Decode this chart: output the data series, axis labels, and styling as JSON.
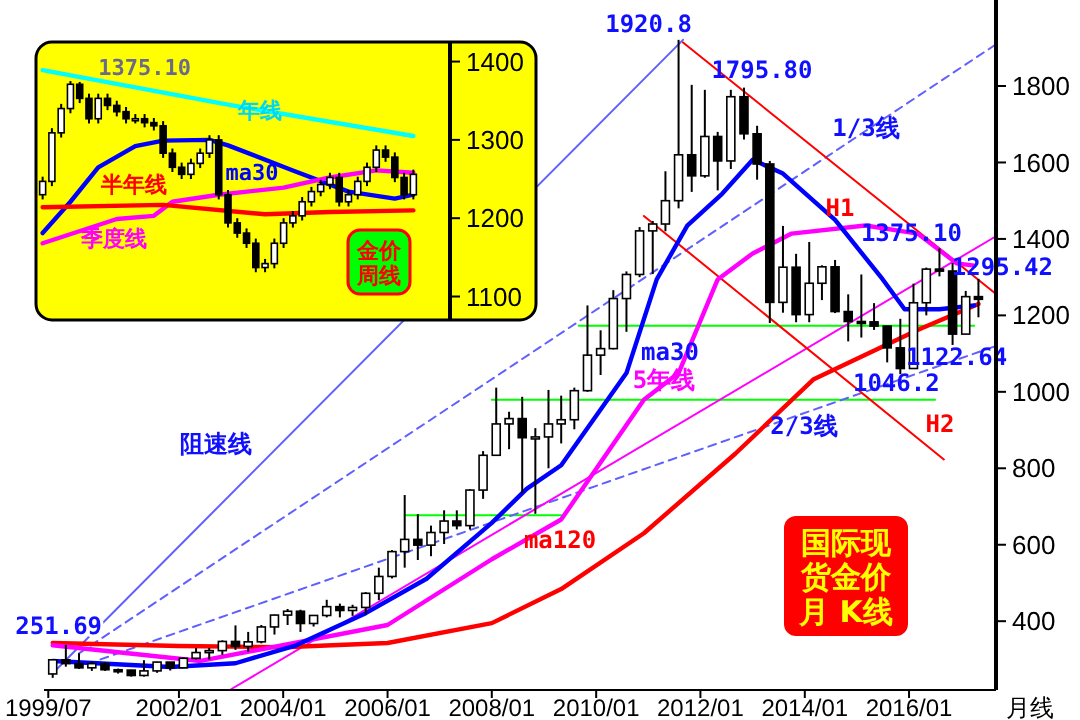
{
  "chart_data": [
    {
      "type": "candlestick",
      "color": "#000000",
      "xlabel": "月线",
      "xlim": [
        "1999-06",
        "2017-09"
      ],
      "ylim": [
        220,
        2025
      ],
      "xticks": [
        {
          "value": "1999-07",
          "label": "1999/07"
        },
        {
          "value": "2002-01",
          "label": "2002/01"
        },
        {
          "value": "2004-01",
          "label": "2004/01"
        },
        {
          "value": "2006-01",
          "label": "2006/01"
        },
        {
          "value": "2008-01",
          "label": "2008/01"
        },
        {
          "value": "2010-01",
          "label": "2010/01"
        },
        {
          "value": "2012-01",
          "label": "2012/01"
        },
        {
          "value": "2014-01",
          "label": "2014/01"
        },
        {
          "value": "2016-01",
          "label": "2016/01"
        }
      ],
      "yticks": [
        400,
        600,
        800,
        1000,
        1200,
        1400,
        1600,
        1800
      ],
      "x": [
        "1999-08",
        "1999-11",
        "2000-02",
        "2000-05",
        "2000-08",
        "2000-11",
        "2001-02",
        "2001-05",
        "2001-08",
        "2001-11",
        "2002-02",
        "2002-05",
        "2002-08",
        "2002-11",
        "2003-02",
        "2003-05",
        "2003-08",
        "2003-11",
        "2004-02",
        "2004-05",
        "2004-08",
        "2004-11",
        "2005-02",
        "2005-05",
        "2005-08",
        "2005-11",
        "2006-02",
        "2006-05",
        "2006-08",
        "2006-11",
        "2007-02",
        "2007-05",
        "2007-08",
        "2007-11",
        "2008-02",
        "2008-05",
        "2008-08",
        "2008-11",
        "2009-02",
        "2009-05",
        "2009-08",
        "2009-11",
        "2010-02",
        "2010-05",
        "2010-08",
        "2010-11",
        "2011-02",
        "2011-05",
        "2011-08",
        "2011-11",
        "2012-02",
        "2012-05",
        "2012-08",
        "2012-11",
        "2013-02",
        "2013-05",
        "2013-08",
        "2013-11",
        "2014-02",
        "2014-05",
        "2014-08",
        "2014-11",
        "2015-02",
        "2015-05",
        "2015-08",
        "2015-11",
        "2016-02",
        "2016-05",
        "2016-08",
        "2016-11",
        "2017-02",
        "2017-05"
      ],
      "ohlc": [
        [
          262,
          300,
          251.69,
          299
        ],
        [
          299,
          338,
          281,
          289
        ],
        [
          289,
          316,
          275,
          278
        ],
        [
          278,
          294,
          270,
          289
        ],
        [
          289,
          292,
          270,
          273
        ],
        [
          273,
          276,
          263,
          272
        ],
        [
          272,
          273,
          255,
          258
        ],
        [
          258,
          298,
          255,
          270
        ],
        [
          270,
          294,
          265,
          293
        ],
        [
          293,
          293,
          271,
          278
        ],
        [
          278,
          305,
          277,
          303
        ],
        [
          303,
          330,
          300,
          318
        ],
        [
          318,
          330,
          300,
          323
        ],
        [
          323,
          350,
          312,
          347
        ],
        [
          347,
          389,
          325,
          334
        ],
        [
          334,
          372,
          320,
          346
        ],
        [
          346,
          390,
          342,
          385
        ],
        [
          385,
          417,
          365,
          416
        ],
        [
          416,
          432,
          390,
          426
        ],
        [
          426,
          430,
          372,
          394
        ],
        [
          394,
          416,
          386,
          415
        ],
        [
          415,
          456,
          410,
          438
        ],
        [
          438,
          446,
          410,
          428
        ],
        [
          428,
          443,
          414,
          436
        ],
        [
          436,
          476,
          418,
          473
        ],
        [
          473,
          540,
          455,
          517
        ],
        [
          517,
          586,
          512,
          582
        ],
        [
          582,
          730,
          540,
          614
        ],
        [
          614,
          680,
          560,
          599
        ],
        [
          599,
          650,
          570,
          632
        ],
        [
          632,
          690,
          602,
          662
        ],
        [
          662,
          690,
          640,
          650
        ],
        [
          650,
          745,
          640,
          743
        ],
        [
          743,
          845,
          720,
          834
        ],
        [
          834,
          1011,
          833,
          916
        ],
        [
          916,
          948,
          850,
          930
        ],
        [
          930,
          987,
          735,
          880
        ],
        [
          880,
          905,
          681,
          882
        ],
        [
          882,
          1005,
          800,
          916
        ],
        [
          916,
          990,
          865,
          927
        ],
        [
          927,
          1011,
          902,
          1003
        ],
        [
          1003,
          1226,
          1000,
          1096
        ],
        [
          1096,
          1161,
          1044,
          1113
        ],
        [
          1113,
          1266,
          1111,
          1244
        ],
        [
          1244,
          1315,
          1157,
          1307
        ],
        [
          1307,
          1431,
          1300,
          1421
        ],
        [
          1421,
          1447,
          1308,
          1439
        ],
        [
          1439,
          1577,
          1420,
          1500
        ],
        [
          1500,
          1920.8,
          1480,
          1620
        ],
        [
          1620,
          1803,
          1523,
          1565
        ],
        [
          1565,
          1790,
          1560,
          1668
        ],
        [
          1668,
          1680,
          1527,
          1604
        ],
        [
          1604,
          1790,
          1583,
          1772
        ],
        [
          1772,
          1795.8,
          1660,
          1675
        ],
        [
          1675,
          1696,
          1555,
          1596
        ],
        [
          1596,
          1604,
          1180,
          1234
        ],
        [
          1234,
          1434,
          1207,
          1326
        ],
        [
          1326,
          1361,
          1182,
          1202
        ],
        [
          1202,
          1392,
          1182,
          1284
        ],
        [
          1284,
          1331,
          1240,
          1327
        ],
        [
          1327,
          1345,
          1206,
          1210
        ],
        [
          1210,
          1255,
          1132,
          1184
        ],
        [
          1184,
          1307,
          1142,
          1183
        ],
        [
          1183,
          1232,
          1162,
          1172
        ],
        [
          1172,
          1172,
          1077,
          1115
        ],
        [
          1115,
          1191,
          1046.2,
          1061
        ],
        [
          1061,
          1283,
          1061,
          1233
        ],
        [
          1233,
          1325,
          1200,
          1321
        ],
        [
          1321,
          1375.1,
          1302,
          1316
        ],
        [
          1316,
          1337,
          1122.64,
          1151
        ],
        [
          1151,
          1264,
          1151,
          1249
        ],
        [
          1249,
          1295.42,
          1195,
          1242
        ]
      ],
      "series": [
        {
          "type": "line",
          "color": "#00ff00",
          "x": [
            "2006-05",
            "2009-05"
          ],
          "values": [
            677,
            677
          ]
        },
        {
          "type": "line",
          "color": "#00ff00",
          "x": [
            "2008-01",
            "2016-07"
          ],
          "values": [
            979,
            979
          ]
        },
        {
          "type": "line",
          "color": "#00ff00",
          "x": [
            "2009-09",
            "2017-04"
          ],
          "values": [
            1173,
            1173
          ]
        },
        {
          "type": "line",
          "color": "#6060ff",
          "x": [
            "1999-08",
            "2011-09"
          ],
          "values": [
            264,
            1920.8
          ]
        },
        {
          "type": "line",
          "color": "#6060ff",
          "line_style": "dashed",
          "x": [
            "2000-02",
            "2017-09"
          ],
          "values": [
            316,
            1909
          ]
        },
        {
          "type": "line",
          "color": "#6060ff",
          "line_style": "dashed",
          "x": [
            "2000-07",
            "2017-09"
          ],
          "values": [
            300,
            1120
          ]
        },
        {
          "type": "line",
          "color": "#ff00ff",
          "x": [
            "2003-01",
            "2017-09"
          ],
          "values": [
            222,
            1407
          ]
        },
        {
          "type": "line",
          "color": "#ff0000",
          "x": [
            "2011-09",
            "2017-09"
          ],
          "values": [
            1914,
            1256
          ]
        },
        {
          "type": "line",
          "color": "#ff0000",
          "x": [
            "2010-12",
            "2016-09"
          ],
          "values": [
            1460,
            823
          ]
        },
        {
          "type": "line",
          "color": "#ff0000",
          "x": [
            "1999-08",
            "2002-01",
            "2004-01",
            "2006-01",
            "2008-01",
            "2009-05",
            "2010-12",
            "2012-09",
            "2014-03",
            "2016-03",
            "2017-05"
          ],
          "values": [
            343,
            335,
            332,
            343,
            395,
            484,
            630,
            838,
            1032,
            1162,
            1230
          ]
        },
        {
          "type": "line",
          "color": "#ff00ff",
          "x": [
            "1999-08",
            "2002-06",
            "2006-01",
            "2008-01",
            "2009-05",
            "2010-12",
            "2011-08",
            "2012-05",
            "2013-01",
            "2013-10",
            "2015-03",
            "2016-03",
            "2016-12",
            "2017-04"
          ],
          "values": [
            337,
            296,
            390,
            562,
            666,
            979,
            1049,
            1294,
            1362,
            1414,
            1435,
            1414,
            1336,
            1330
          ]
        },
        {
          "type": "line",
          "color": "#0000ff",
          "x": [
            "1999-08",
            "2001-11",
            "2003-02",
            "2004-04",
            "2005-08",
            "2006-10",
            "2008-01",
            "2008-09",
            "2009-05",
            "2010-08",
            "2011-03",
            "2011-10",
            "2012-06",
            "2013-01",
            "2013-08",
            "2014-08",
            "2015-07",
            "2015-12",
            "2016-08",
            "2017-04"
          ],
          "values": [
            296,
            280,
            290,
            337,
            421,
            511,
            657,
            746,
            808,
            1049,
            1294,
            1435,
            1518,
            1607,
            1571,
            1450,
            1294,
            1216,
            1216,
            1226
          ]
        }
      ],
      "annotations": [
        {
          "text": "1920.8",
          "x": "2011-08",
          "y": 1920.8
        },
        {
          "text": "1795.80",
          "x": "2012-11",
          "y": 1795.8
        },
        "1/3线",
        "H1",
        {
          "text": "1375.10",
          "x": "2016-08",
          "y": 1375.1
        },
        {
          "text": "1295.42",
          "x": "2017-05",
          "y": 1295.42
        },
        {
          "text": "1122.64",
          "x": "2016-11",
          "y": 1122.64
        },
        {
          "text": "1046.2",
          "x": "2015-11",
          "y": 1046.2
        },
        "2/3线",
        "H2",
        "5年线",
        "ma30",
        "ma120",
        "阻速线",
        {
          "text": "251.69",
          "x": "1999-08",
          "y": 251.69
        },
        "国际现货金价月 K线"
      ]
    },
    {
      "type": "candlestick",
      "color": "#000000",
      "ylim": [
        1070,
        1425
      ],
      "yticks": [
        1100,
        1200,
        1300,
        1400
      ],
      "categories": [
        null,
        null,
        null,
        null,
        null,
        null,
        null,
        null,
        null,
        null,
        null,
        null,
        null,
        null,
        null,
        null,
        null,
        null,
        null,
        null,
        null,
        null,
        null,
        null,
        null,
        null,
        null,
        null,
        null,
        null,
        null,
        null,
        null,
        null,
        null,
        null,
        null,
        null,
        null,
        null,
        null
      ],
      "ohlc": [
        [
          1230,
          1253,
          1224,
          1247
        ],
        [
          1247,
          1315,
          1241,
          1309
        ],
        [
          1309,
          1346,
          1303,
          1340
        ],
        [
          1340,
          1375.1,
          1334,
          1371
        ],
        [
          1371,
          1374,
          1347,
          1353
        ],
        [
          1353,
          1359,
          1321,
          1327
        ],
        [
          1327,
          1359,
          1321,
          1353
        ],
        [
          1353,
          1359,
          1338,
          1344
        ],
        [
          1344,
          1350,
          1330,
          1336
        ],
        [
          1336,
          1342,
          1321,
          1327
        ],
        [
          1327,
          1333,
          1321,
          1327
        ],
        [
          1327,
          1333,
          1316,
          1322
        ],
        [
          1322,
          1328,
          1312,
          1318
        ],
        [
          1318,
          1324,
          1277,
          1283
        ],
        [
          1283,
          1289,
          1259,
          1265
        ],
        [
          1265,
          1271,
          1250,
          1256
        ],
        [
          1256,
          1276,
          1250,
          1270
        ],
        [
          1270,
          1289,
          1264,
          1283
        ],
        [
          1283,
          1306,
          1277,
          1300
        ],
        [
          1300,
          1306,
          1224,
          1230
        ],
        [
          1230,
          1236,
          1188,
          1194
        ],
        [
          1194,
          1200,
          1175,
          1181
        ],
        [
          1181,
          1187,
          1162,
          1168
        ],
        [
          1168,
          1174,
          1131,
          1137
        ],
        [
          1137,
          1148,
          1131,
          1142
        ],
        [
          1142,
          1174,
          1136,
          1168
        ],
        [
          1168,
          1200,
          1162,
          1194
        ],
        [
          1194,
          1209,
          1188,
          1203
        ],
        [
          1203,
          1227,
          1197,
          1221
        ],
        [
          1221,
          1240,
          1215,
          1234
        ],
        [
          1234,
          1249,
          1228,
          1243
        ],
        [
          1243,
          1258,
          1237,
          1252
        ],
        [
          1252,
          1258,
          1215,
          1221
        ],
        [
          1221,
          1236,
          1215,
          1230
        ],
        [
          1230,
          1253,
          1224,
          1247
        ],
        [
          1247,
          1271,
          1241,
          1265
        ],
        [
          1265,
          1293,
          1259,
          1287
        ],
        [
          1287,
          1293,
          1272,
          1278
        ],
        [
          1278,
          1284,
          1246,
          1252
        ],
        [
          1252,
          1258,
          1224,
          1230
        ],
        [
          1230,
          1262,
          1224,
          1256
        ]
      ],
      "series": [
        {
          "type": "line",
          "color": "#00ffff",
          "values": [
            1389,
            null,
            null,
            null,
            null,
            null,
            null,
            null,
            null,
            null,
            null,
            null,
            null,
            null,
            null,
            null,
            null,
            null,
            null,
            null,
            1345,
            null,
            null,
            null,
            null,
            null,
            null,
            null,
            null,
            null,
            null,
            null,
            null,
            null,
            null,
            null,
            null,
            null,
            null,
            null,
            1305
          ]
        },
        {
          "type": "line",
          "color": "#0000ff",
          "values": [
            1181,
            null,
            null,
            1221,
            null,
            null,
            1265,
            null,
            null,
            null,
            1292,
            null,
            null,
            1299,
            null,
            null,
            null,
            null,
            1300,
            null,
            1293,
            null,
            null,
            null,
            null,
            null,
            null,
            1261,
            null,
            null,
            null,
            null,
            null,
            1234,
            null,
            null,
            null,
            null,
            1225,
            null,
            1230
          ]
        },
        {
          "type": "line",
          "color": "#ff00ff",
          "values": [
            1168,
            null,
            null,
            null,
            null,
            null,
            null,
            null,
            1199,
            null,
            null,
            null,
            1203,
            null,
            1221,
            null,
            null,
            null,
            null,
            1230,
            null,
            null,
            null,
            null,
            null,
            null,
            1239,
            null,
            null,
            null,
            null,
            1252,
            null,
            null,
            null,
            null,
            1261,
            null,
            null,
            null,
            1258
          ]
        },
        {
          "type": "line",
          "color": "#ff0000",
          "values": [
            1214,
            null,
            null,
            null,
            null,
            null,
            null,
            null,
            null,
            null,
            null,
            null,
            null,
            1217,
            null,
            null,
            null,
            null,
            null,
            null,
            null,
            null,
            null,
            null,
            1205,
            null,
            null,
            null,
            null,
            null,
            null,
            1208,
            null,
            null,
            null,
            null,
            null,
            null,
            null,
            null,
            1210
          ]
        }
      ],
      "annotations": [
        {
          "text": "1375.10",
          "y": 1375.1
        },
        "年线",
        "ma30",
        "半年线",
        "季度线",
        "金价周线"
      ]
    }
  ]
}
